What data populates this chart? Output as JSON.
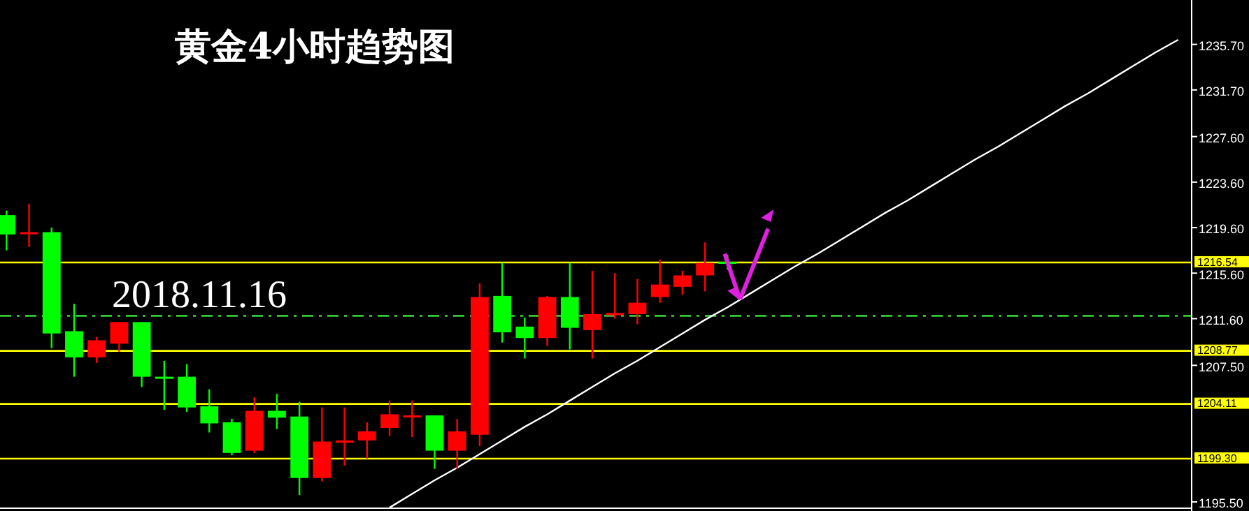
{
  "chart_data": {
    "type": "candlestick",
    "title": "黄金4小时趋势图",
    "annotations": [
      "2018.11.16"
    ],
    "categories": [
      null,
      null,
      null,
      null,
      null,
      null,
      null,
      null,
      null,
      null,
      null,
      null,
      null,
      null,
      null,
      null,
      null,
      null,
      null,
      null,
      null,
      null,
      null,
      null,
      null,
      null,
      null,
      null,
      null,
      null,
      null,
      null,
      null,
      null,
      null,
      null,
      null,
      null,
      null,
      null,
      null,
      null,
      null,
      null,
      null,
      null,
      null,
      null,
      null,
      null,
      null,
      null,
      null
    ],
    "ohlc": [
      [
        1220.7,
        1221.1,
        1217.6,
        1219.0
      ],
      [
        1219.1,
        1221.7,
        1217.9,
        1219.2
      ],
      [
        1219.2,
        1219.6,
        1209.0,
        1210.3
      ],
      [
        1210.5,
        1212.9,
        1206.5,
        1208.2
      ],
      [
        1208.2,
        1210.0,
        1207.7,
        1209.7
      ],
      [
        1209.4,
        1211.3,
        1208.7,
        1211.3
      ],
      [
        1211.3,
        1211.3,
        1205.6,
        1206.5
      ],
      [
        1206.5,
        1207.9,
        1203.6,
        1206.4
      ],
      [
        1206.5,
        1207.6,
        1203.4,
        1203.8
      ],
      [
        1203.9,
        1205.4,
        1201.6,
        1202.4
      ],
      [
        1202.5,
        1202.8,
        1199.6,
        1199.8
      ],
      [
        1200.0,
        1204.7,
        1199.8,
        1203.5
      ],
      [
        1203.5,
        1205.0,
        1201.9,
        1202.9
      ],
      [
        1203.0,
        1204.3,
        1196.1,
        1197.6
      ],
      [
        1197.6,
        1203.8,
        1197.3,
        1200.8
      ],
      [
        1200.7,
        1203.8,
        1198.7,
        1200.9
      ],
      [
        1200.9,
        1202.5,
        1199.3,
        1201.7
      ],
      [
        1202.0,
        1204.4,
        1201.3,
        1203.2
      ],
      [
        1203.0,
        1204.4,
        1201.2,
        1203.1
      ],
      [
        1203.1,
        1203.1,
        1198.4,
        1200.0
      ],
      [
        1200.0,
        1202.8,
        1198.4,
        1201.7
      ],
      [
        1201.4,
        1214.7,
        1200.4,
        1213.5
      ],
      [
        1213.6,
        1216.5,
        1209.5,
        1210.4
      ],
      [
        1210.9,
        1211.7,
        1208.1,
        1209.9
      ],
      [
        1209.9,
        1213.6,
        1209.2,
        1213.5
      ],
      [
        1213.5,
        1216.5,
        1208.9,
        1210.8
      ],
      [
        1210.6,
        1215.8,
        1208.1,
        1212.0
      ],
      [
        1211.9,
        1215.6,
        1211.6,
        1212.1
      ],
      [
        1212.0,
        1215.1,
        1211.1,
        1213.0
      ],
      [
        1213.5,
        1216.8,
        1213.0,
        1214.6
      ],
      [
        1214.4,
        1215.8,
        1213.7,
        1215.4
      ],
      [
        1215.4,
        1218.3,
        1214.0,
        1216.5
      ],
      [
        1216.6,
        1217.2,
        1215.9,
        1216.5
      ],
      null,
      null,
      null,
      null,
      null,
      null,
      null,
      null,
      null,
      null,
      null,
      null,
      null,
      null,
      null,
      null,
      null,
      null,
      null,
      null
    ],
    "series": [
      {
        "type": "line",
        "color": "#ffffff",
        "values": [
          null,
          null,
          null,
          null,
          null,
          null,
          null,
          null,
          null,
          null,
          null,
          null,
          null,
          null,
          null,
          null,
          null,
          1195.0,
          1196.2,
          1197.4,
          1198.5,
          1199.7,
          1200.9,
          1202.1,
          1203.2,
          1204.4,
          1205.6,
          1206.8,
          1207.9,
          1209.1,
          1210.3,
          1211.5,
          1212.6,
          1213.8,
          1215.0,
          1216.2,
          1217.3,
          1218.5,
          1219.7,
          1220.9,
          1222.0,
          1223.2,
          1224.4,
          1225.6,
          1226.7,
          1227.9,
          1229.1,
          1230.3,
          1231.4,
          1232.6,
          1233.8,
          1235.0,
          1236.1
        ]
      }
    ],
    "ylim": [
      1194.7,
      1239.6
    ],
    "yticks": [
      {
        "value": 1235.7,
        "label": "1235.70"
      },
      {
        "value": 1231.7,
        "label": "1231.70"
      },
      {
        "value": 1227.6,
        "label": "1227.60"
      },
      {
        "value": 1223.6,
        "label": "1223.60"
      },
      {
        "value": 1219.6,
        "label": "1219.60"
      },
      {
        "value": 1215.6,
        "label": "1215.60"
      },
      {
        "value": 1211.6,
        "label": "1211.60"
      },
      {
        "value": 1207.5,
        "label": "1207.50"
      },
      {
        "value": 1195.5,
        "label": "1195.50"
      }
    ],
    "ref_lines": [
      {
        "axis": "y",
        "value": 1216.54,
        "label": "1216.54",
        "color": "#ffff00"
      },
      {
        "axis": "y",
        "value": 1211.85,
        "color": "#33cc33",
        "line_style": "dashdot"
      },
      {
        "axis": "y",
        "value": 1208.77,
        "label": "1208.77",
        "color": "#ffff00"
      },
      {
        "axis": "y",
        "value": 1204.11,
        "label": "1204.11",
        "color": "#ffff00"
      },
      {
        "axis": "y",
        "value": 1199.3,
        "label": "1199.30",
        "color": "#ffff00"
      }
    ],
    "tick_labels": "y",
    "grid": false
  }
}
